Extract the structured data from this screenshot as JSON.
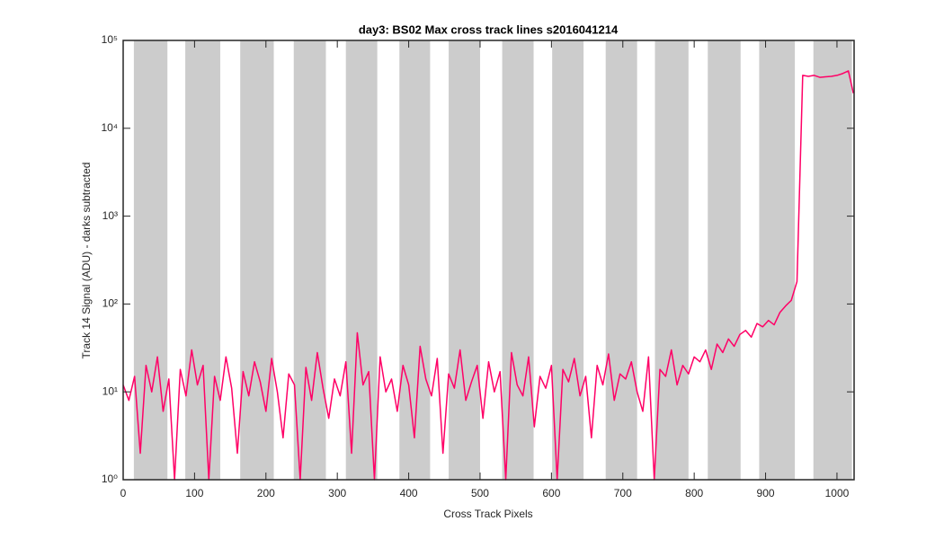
{
  "chart_data": {
    "type": "line",
    "title": "day3: BS02  Max cross track lines  s2016041214",
    "x_label": "Cross Track Pixels",
    "y_label": "Track 14 Signal (ADU) - darks subtracted",
    "yscale": "log",
    "xlim": [
      0,
      1024
    ],
    "ylim": [
      1,
      100000
    ],
    "xticks": [
      0,
      100,
      200,
      300,
      400,
      500,
      600,
      700,
      800,
      900,
      1000
    ],
    "yticks": [
      {
        "value": 1,
        "label": "10⁰"
      },
      {
        "value": 10,
        "label": "10¹"
      },
      {
        "value": 100,
        "label": "10²"
      },
      {
        "value": 1000,
        "label": "10³"
      },
      {
        "value": 10000,
        "label": "10⁴"
      },
      {
        "value": 100000,
        "label": "10⁵"
      }
    ],
    "shaded_ranges": [
      [
        15,
        62
      ],
      [
        87,
        136
      ],
      [
        164,
        211
      ],
      [
        239,
        284
      ],
      [
        312,
        356
      ],
      [
        387,
        430
      ],
      [
        456,
        500
      ],
      [
        531,
        575
      ],
      [
        601,
        645
      ],
      [
        676,
        720
      ],
      [
        745,
        792
      ],
      [
        819,
        865
      ],
      [
        891,
        941
      ],
      [
        967,
        1021
      ]
    ],
    "shade_color": "#cccccc",
    "x": [
      0,
      8,
      16,
      24,
      32,
      40,
      48,
      56,
      64,
      72,
      80,
      88,
      96,
      104,
      112,
      120,
      128,
      136,
      144,
      152,
      160,
      168,
      176,
      184,
      192,
      200,
      208,
      216,
      224,
      232,
      240,
      248,
      256,
      264,
      272,
      280,
      288,
      296,
      304,
      312,
      320,
      328,
      336,
      344,
      352,
      360,
      368,
      376,
      384,
      392,
      400,
      408,
      416,
      424,
      432,
      440,
      448,
      456,
      464,
      472,
      480,
      488,
      496,
      504,
      512,
      520,
      528,
      536,
      544,
      552,
      560,
      568,
      576,
      584,
      592,
      600,
      608,
      616,
      624,
      632,
      640,
      648,
      656,
      664,
      672,
      680,
      688,
      696,
      704,
      712,
      720,
      728,
      736,
      744,
      752,
      760,
      768,
      776,
      784,
      792,
      800,
      808,
      816,
      824,
      832,
      840,
      848,
      856,
      864,
      872,
      880,
      888,
      896,
      904,
      912,
      920,
      928,
      936,
      944,
      952,
      960,
      968,
      976,
      984,
      992,
      1000,
      1008,
      1016,
      1023
    ],
    "series": [
      {
        "color": "#ff0066",
        "values": [
          12,
          8,
          15,
          2,
          20,
          10,
          25,
          6,
          14,
          1,
          18,
          9,
          30,
          12,
          20,
          1,
          15,
          8,
          25,
          11,
          2,
          17,
          9,
          22,
          13,
          6,
          24,
          10,
          3,
          16,
          12,
          1,
          19,
          8,
          28,
          11,
          5,
          14,
          9,
          22,
          2,
          47,
          12,
          17,
          1,
          25,
          10,
          14,
          6,
          20,
          12,
          3,
          33,
          14,
          9,
          24,
          2,
          16,
          11,
          30,
          8,
          13,
          20,
          5,
          22,
          10,
          17,
          1,
          28,
          12,
          9,
          25,
          4,
          15,
          11,
          20,
          1,
          18,
          13,
          24,
          9,
          15,
          3,
          20,
          12,
          27,
          8,
          16,
          14,
          22,
          10,
          6,
          25,
          1,
          18,
          15,
          30,
          12,
          20,
          16,
          25,
          22,
          30,
          18,
          35,
          28,
          40,
          33,
          45,
          50,
          42,
          60,
          55,
          65,
          58,
          80,
          95,
          110,
          180,
          40000,
          39000,
          40000,
          38000,
          38500,
          39000,
          40000,
          42000,
          45000,
          25000
        ]
      }
    ]
  }
}
